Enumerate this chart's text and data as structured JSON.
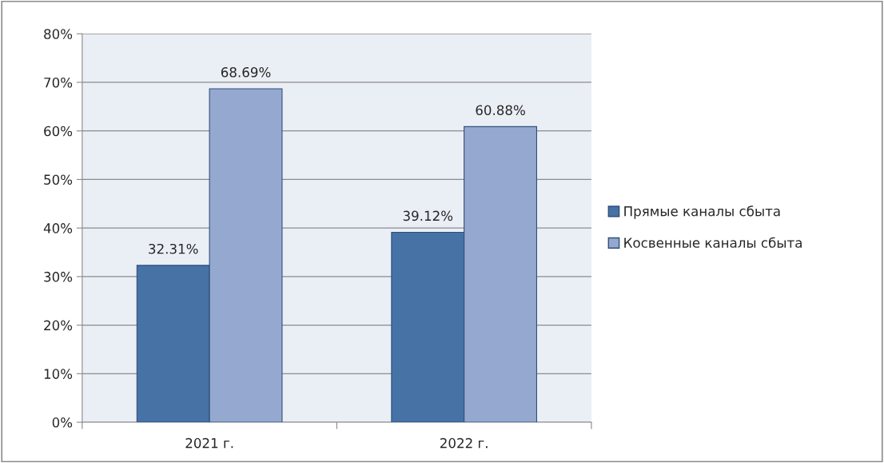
{
  "chart_data": {
    "type": "bar",
    "categories": [
      "2021 г.",
      "2022 г."
    ],
    "series": [
      {
        "name": "Прямые каналы сбыта",
        "color": "#4672a6",
        "values": [
          32.31,
          39.12
        ],
        "value_labels": [
          "32.31%",
          "39.12%"
        ]
      },
      {
        "name": "Косвенные каналы сбыта",
        "color": "#95a9d0",
        "values": [
          68.69,
          60.88
        ],
        "value_labels": [
          "68.69%",
          "60.88%"
        ]
      }
    ],
    "ylim": [
      0,
      80
    ],
    "yticks": [
      {
        "value": 0,
        "label": "0%"
      },
      {
        "value": 10,
        "label": "10%"
      },
      {
        "value": 20,
        "label": "20%"
      },
      {
        "value": 30,
        "label": "30%"
      },
      {
        "value": 40,
        "label": "40%"
      },
      {
        "value": 50,
        "label": "50%"
      },
      {
        "value": 60,
        "label": "60%"
      },
      {
        "value": 70,
        "label": "70%"
      },
      {
        "value": 80,
        "label": "80%"
      }
    ],
    "grid": "y",
    "legend": "right"
  }
}
